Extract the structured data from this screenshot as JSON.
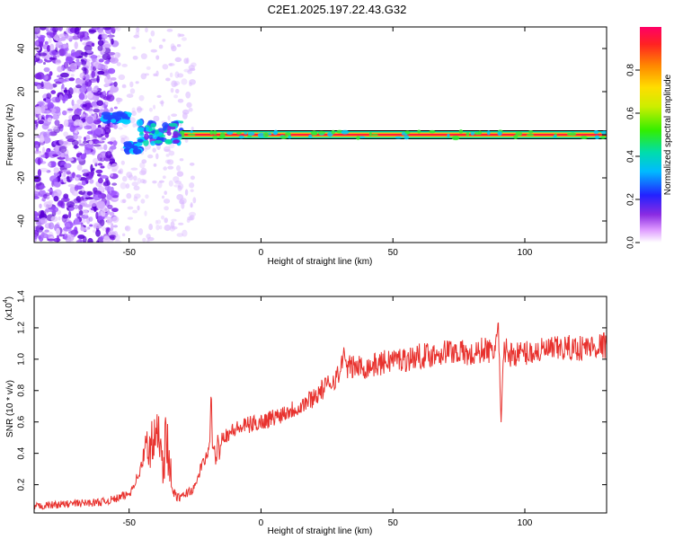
{
  "title": "C2E1.2025.197.22.43.G32",
  "colors": {
    "line": "#e8322e",
    "frame": "#000000",
    "cbar": [
      "#ffffff",
      "#cc66ff",
      "#7a1fe8",
      "#2222ff",
      "#00ccff",
      "#00ee66",
      "#88ee00",
      "#ffff00",
      "#ff9900",
      "#ff2222",
      "#ff0066"
    ]
  },
  "chart_data": [
    {
      "type": "heatmap",
      "xlabel": "Height of straight line (km)",
      "ylabel": "Frequency (Hz)",
      "xlim": [
        -86,
        131
      ],
      "ylim": [
        -50,
        50
      ],
      "xticks": [
        -50,
        0,
        50,
        100
      ],
      "yticks": [
        -40,
        -20,
        0,
        20,
        40
      ],
      "colorbar": {
        "label": "Normalized spectral amplitude",
        "range": [
          0,
          1
        ],
        "ticks": [
          0.0,
          0.2,
          0.4,
          0.6,
          0.8
        ]
      },
      "features": [
        {
          "x_range": [
            -86,
            -55
          ],
          "freq_range": [
            -50,
            50
          ],
          "amplitude": 0.2
        },
        {
          "x_range": [
            -60,
            -50
          ],
          "freq": 8,
          "amplitude": 0.45
        },
        {
          "x_range": [
            -51,
            -46
          ],
          "freq": -6,
          "amplitude": 0.35
        },
        {
          "x_range": [
            -46,
            -30
          ],
          "freq_range": [
            -3,
            4
          ],
          "amplitude": 0.4
        },
        {
          "x_range": [
            -30,
            131
          ],
          "freq": 0,
          "amplitude": 1.0
        }
      ]
    },
    {
      "type": "line",
      "xlabel": "Height of straight line (km)",
      "ylabel": "SNR (10 * v/v)",
      "yscale_label": "(x10",
      "yscale_exp": "4",
      "xlim": [
        -86,
        131
      ],
      "ylim": [
        0.02,
        1.4
      ],
      "xticks": [
        -50,
        0,
        50,
        100
      ],
      "yticks": [
        0.2,
        0.4,
        0.6,
        0.8,
        1.0,
        1.2,
        1.4
      ],
      "series": [
        {
          "x": [
            -86,
            -80,
            -70,
            -60,
            -55,
            -50,
            -46,
            -44,
            -42,
            -40,
            -38,
            -37,
            -36,
            -34,
            -32,
            -30,
            -28,
            -25,
            -23,
            -20,
            -19,
            -18,
            -17,
            -15,
            -10,
            -5,
            0,
            5,
            10,
            15,
            20,
            25,
            28,
            30,
            31,
            32,
            35,
            40,
            45,
            50,
            55,
            60,
            65,
            70,
            75,
            80,
            85,
            88,
            90,
            91,
            92,
            93,
            95,
            100,
            105,
            110,
            115,
            120,
            125,
            131
          ],
          "y": [
            0.06,
            0.07,
            0.08,
            0.09,
            0.11,
            0.14,
            0.28,
            0.4,
            0.45,
            0.48,
            0.55,
            0.3,
            0.55,
            0.18,
            0.12,
            0.12,
            0.15,
            0.18,
            0.3,
            0.4,
            0.7,
            0.35,
            0.42,
            0.5,
            0.55,
            0.58,
            0.6,
            0.63,
            0.67,
            0.7,
            0.76,
            0.83,
            0.88,
            0.9,
            1.05,
            0.95,
            0.95,
            0.95,
            0.97,
            1.0,
            1.0,
            1.02,
            1.03,
            1.05,
            1.05,
            1.02,
            1.07,
            1.03,
            1.2,
            0.55,
            1.08,
            1.05,
            1.03,
            1.04,
            1.05,
            1.06,
            1.07,
            1.07,
            1.08,
            1.09
          ]
        }
      ]
    }
  ]
}
